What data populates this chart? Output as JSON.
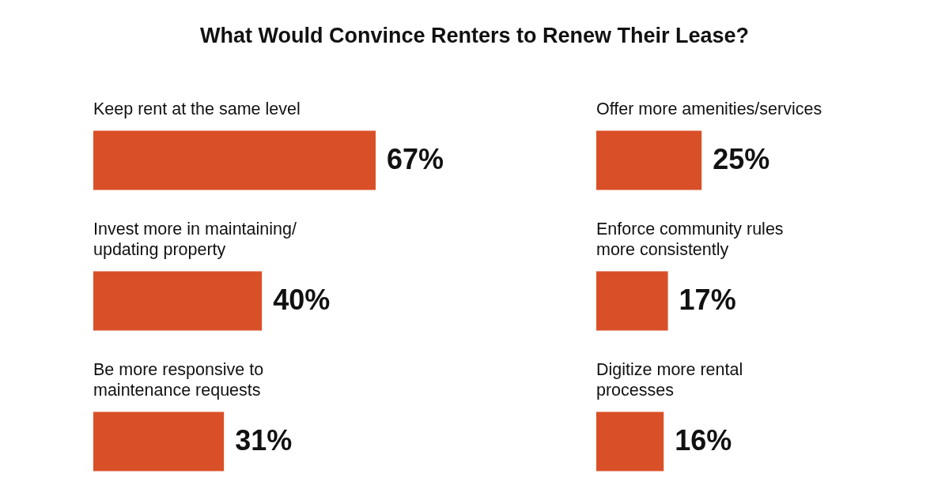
{
  "chart_data": [
    {
      "type": "bar",
      "orientation": "horizontal",
      "title": "What Would Convince Renters to Renew Their Lease?",
      "categories": [
        "Keep rent at the same level",
        "Invest more in maintaining/\nupdating property",
        "Be more responsive to\nmaintenance requests"
      ],
      "values": [
        67,
        40,
        31
      ],
      "value_labels": [
        "67%",
        "40%",
        "31%"
      ],
      "color": "#d95028"
    },
    {
      "type": "bar",
      "orientation": "horizontal",
      "categories": [
        "Offer more amenities/services",
        "Enforce community rules\nmore consistently",
        "Digitize more rental\nprocesses"
      ],
      "values": [
        25,
        17,
        16
      ],
      "value_labels": [
        "25%",
        "17%",
        "16%"
      ],
      "color": "#d95028"
    }
  ]
}
